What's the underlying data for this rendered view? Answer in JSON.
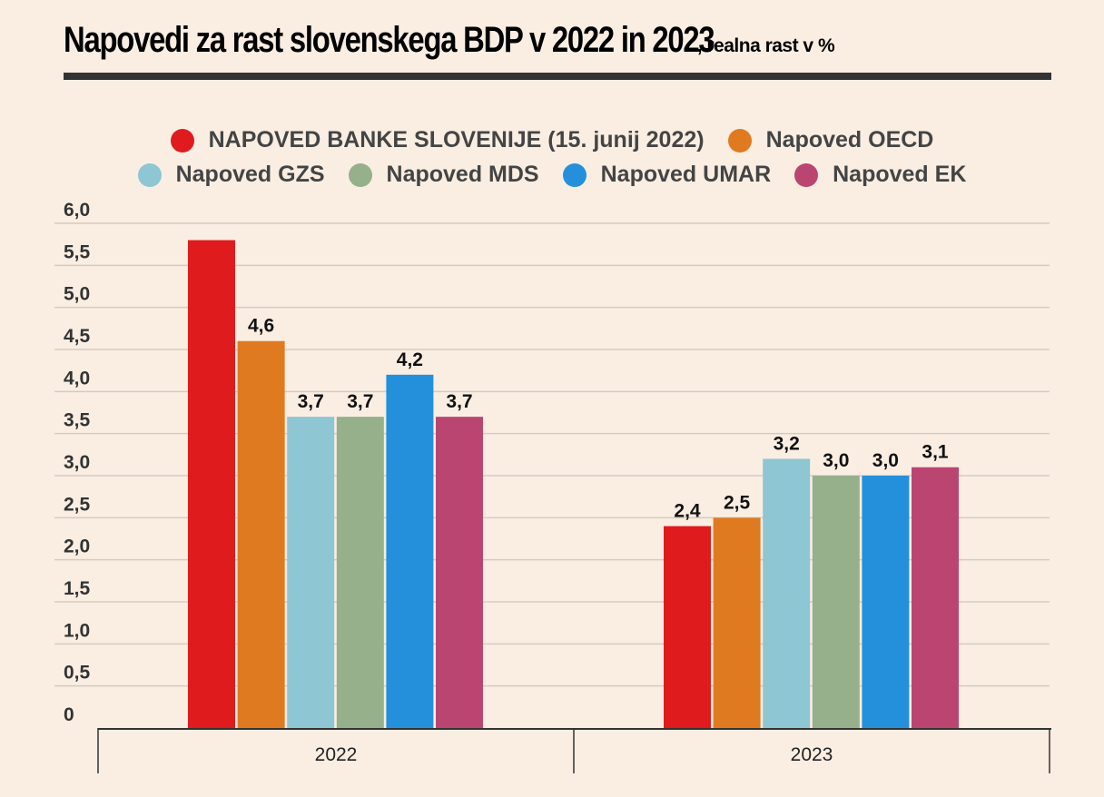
{
  "chart_data": {
    "type": "bar",
    "title": "Napovedi za rast slovenskega BDP v 2022 in 2023",
    "subtitle": ", realna rast v %",
    "categories": [
      "2022",
      "2023"
    ],
    "ylim": [
      0,
      6
    ],
    "yticks": [
      "0",
      "0,5",
      "1,0",
      "1,5",
      "2,0",
      "2,5",
      "3,0",
      "3,5",
      "4,0",
      "4,5",
      "5,0",
      "5,5",
      "6,0"
    ],
    "grid": true,
    "legend_position": "top",
    "series": [
      {
        "name": "NAPOVED BANKE SLOVENIJE (15. junij 2022)",
        "color": "#e01b1e",
        "values": [
          5.8,
          2.4
        ],
        "labels": [
          "",
          "2,4"
        ]
      },
      {
        "name": "Napoved OECD",
        "color": "#e07a20",
        "values": [
          4.6,
          2.5
        ],
        "labels": [
          "4,6",
          "2,5"
        ]
      },
      {
        "name": "Napoved GZS",
        "color": "#8ec6d3",
        "values": [
          3.7,
          3.2
        ],
        "labels": [
          "3,7",
          "3,2"
        ]
      },
      {
        "name": "Napoved MDS",
        "color": "#95b08b",
        "values": [
          3.7,
          3.0
        ],
        "labels": [
          "3,7",
          "3,0"
        ]
      },
      {
        "name": "Napoved UMAR",
        "color": "#2490dc",
        "values": [
          4.2,
          3.0
        ],
        "labels": [
          "4,2",
          "3,0"
        ]
      },
      {
        "name": "Napoved EK",
        "color": "#bb4571",
        "values": [
          3.7,
          3.1
        ],
        "labels": [
          "3,7",
          "3,1"
        ]
      }
    ]
  }
}
